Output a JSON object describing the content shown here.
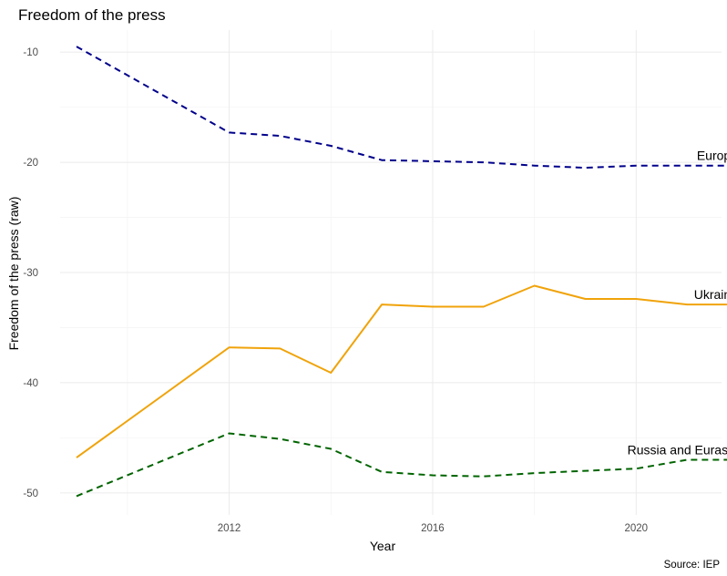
{
  "chart_data": {
    "type": "line",
    "title": "Freedom of the press",
    "xlabel": "Year",
    "ylabel": "Freedom of the press (raw)",
    "caption": "Source: IEP",
    "xlim": [
      2009,
      2022
    ],
    "ylim": [
      -52,
      -8
    ],
    "x_ticks": [
      2012,
      2016,
      2020
    ],
    "y_ticks": [
      -50,
      -40,
      -30,
      -20,
      -10
    ],
    "grid": true,
    "legend": "direct labels at line ends",
    "series": [
      {
        "name": "Europe",
        "color": "#00008b",
        "dash": "dashed",
        "x": [
          2009,
          2012,
          2013,
          2014,
          2015,
          2016,
          2017,
          2018,
          2019,
          2020,
          2021,
          2022
        ],
        "values": [
          -9.5,
          -17.3,
          -17.6,
          -18.5,
          -19.8,
          -19.9,
          -20.0,
          -20.3,
          -20.5,
          -20.3,
          -20.3,
          -20.3
        ]
      },
      {
        "name": "Ukraine",
        "color": "#f0a30a",
        "dash": "solid",
        "x": [
          2009,
          2012,
          2013,
          2014,
          2015,
          2016,
          2017,
          2018,
          2019,
          2020,
          2021,
          2022
        ],
        "values": [
          -46.8,
          -36.8,
          -36.9,
          -39.1,
          -32.9,
          -33.1,
          -33.1,
          -31.2,
          -32.4,
          -32.4,
          -32.9,
          -32.9
        ]
      },
      {
        "name": "Russia and Eurasia",
        "color": "#006400",
        "dash": "dashed",
        "x": [
          2009,
          2012,
          2013,
          2014,
          2015,
          2016,
          2017,
          2018,
          2019,
          2020,
          2021,
          2022
        ],
        "values": [
          -50.3,
          -44.6,
          -45.1,
          -46.0,
          -48.1,
          -48.4,
          -48.5,
          -48.2,
          -48.0,
          -47.8,
          -47.0,
          -47.0
        ]
      }
    ]
  }
}
